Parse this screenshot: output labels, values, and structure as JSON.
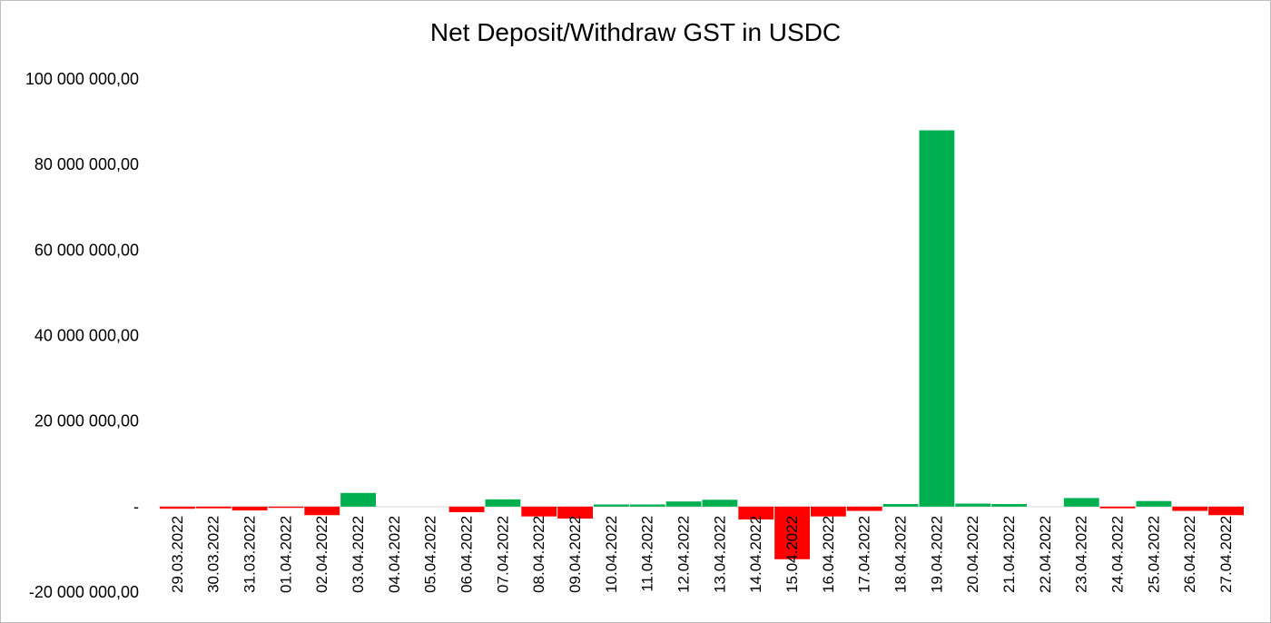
{
  "chart_data": {
    "type": "bar",
    "title": "Net Deposit/Withdraw GST in USDC",
    "xlabel": "",
    "ylabel": "",
    "ylim": [
      -20000000,
      100000000
    ],
    "grid": false,
    "legend": "none",
    "y_tick_values": [
      100000000,
      80000000,
      60000000,
      40000000,
      20000000,
      0,
      -20000000
    ],
    "y_tick_labels": [
      "100 000 000,00",
      "80 000 000,00",
      "60 000 000,00",
      "40 000 000,00",
      "20 000 000,00",
      "-",
      "-20 000 000,00"
    ],
    "positive_color": "#00b050",
    "negative_color": "#ff0000",
    "categories": [
      "29.03.2022",
      "30.03.2022",
      "31.03.2022",
      "01.04.2022",
      "02.04.2022",
      "03.04.2022",
      "04.04.2022",
      "05.04.2022",
      "06.04.2022",
      "07.04.2022",
      "08.04.2022",
      "09.04.2022",
      "10.04.2022",
      "11.04.2022",
      "12.04.2022",
      "13.04.2022",
      "14.04.2022",
      "15.04.2022",
      "16.04.2022",
      "17.04.2022",
      "18.04.2022",
      "19.04.2022",
      "20.04.2022",
      "21.04.2022",
      "22.04.2022",
      "23.04.2022",
      "24.04.2022",
      "25.04.2022",
      "26.04.2022",
      "27.04.2022"
    ],
    "values": [
      -500000,
      -400000,
      -900000,
      -300000,
      -2000000,
      3200000,
      0,
      0,
      -1300000,
      1700000,
      -2300000,
      -2800000,
      500000,
      500000,
      1200000,
      1600000,
      -3000000,
      -12300000,
      -2300000,
      -1000000,
      600000,
      88000000,
      700000,
      600000,
      0,
      2000000,
      -400000,
      1300000,
      -1000000,
      -2000000
    ]
  }
}
